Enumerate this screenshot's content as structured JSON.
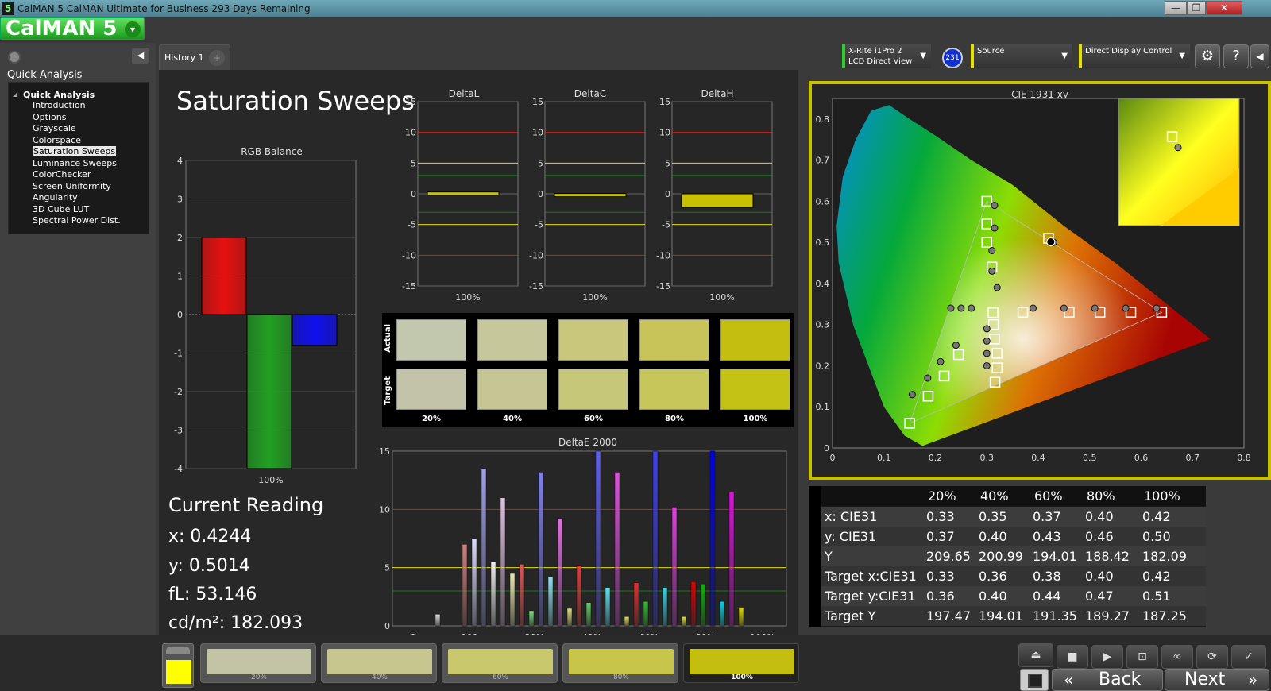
{
  "titlebar": {
    "text": "CalMAN 5 CalMAN Ultimate for Business 293 Days Remaining",
    "logo": "5",
    "minimize": "—",
    "maximize": "❐",
    "close": "✕"
  },
  "brand": {
    "name": "CalMAN 5"
  },
  "left": {
    "section_title": "Quick Analysis",
    "tree_root": "Quick Analysis",
    "items": [
      "Introduction",
      "Options",
      "Grayscale",
      "Colorspace",
      "Saturation Sweeps",
      "Luminance Sweeps",
      "ColorChecker",
      "Screen Uniformity",
      "Angularity",
      "3D Cube LUT",
      "Spectral Power Dist."
    ],
    "selected_index": 4
  },
  "history": {
    "tab_label": "History 1",
    "plus": "+"
  },
  "devices": {
    "meter": {
      "line1": "X-Rite i1Pro 2",
      "line2": "LCD Direct View",
      "badge": "231",
      "accent": "#2ecc2e"
    },
    "source": {
      "label": "Source",
      "accent": "#e8e000"
    },
    "display": {
      "label": "Direct Display Control",
      "accent": "#e8e000"
    }
  },
  "icons": {
    "settings": "gear-icon",
    "help": "help-icon",
    "collapse": "chevron-left-icon"
  },
  "page": {
    "title": "Saturation Sweeps"
  },
  "rgb_balance": {
    "title": "RGB Balance",
    "xlabel": "100%"
  },
  "deltas": [
    {
      "title": "DeltaL",
      "xlabel": "100%"
    },
    {
      "title": "DeltaC",
      "xlabel": "100%"
    },
    {
      "title": "DeltaH",
      "xlabel": "100%"
    }
  ],
  "swatches": {
    "row_actual": "Actual",
    "row_target": "Target",
    "labels": [
      "20%",
      "40%",
      "60%",
      "80%",
      "100%"
    ],
    "actual": [
      "#c2c8ad",
      "#c6c79a",
      "#c9c77c",
      "#c8c45a",
      "#c4be10"
    ],
    "target": [
      "#c3c3aa",
      "#c6c695",
      "#c7c77a",
      "#c6c65a",
      "#c4c214"
    ]
  },
  "deltae": {
    "title": "DeltaE 2000"
  },
  "current": {
    "heading": "Current Reading",
    "x": "x: 0.4244",
    "y": "y: 0.5014",
    "fl": "fL: 53.146",
    "cdm": "cd/m²: 182.093"
  },
  "cie": {
    "title": "CIE 1931 xy"
  },
  "table": {
    "headers": [
      "20%",
      "40%",
      "60%",
      "80%",
      "100%"
    ],
    "rows": [
      {
        "label": "x: CIE31",
        "values": [
          "0.33",
          "0.35",
          "0.37",
          "0.40",
          "0.42"
        ]
      },
      {
        "label": "y: CIE31",
        "values": [
          "0.37",
          "0.40",
          "0.43",
          "0.46",
          "0.50"
        ]
      },
      {
        "label": "Y",
        "values": [
          "209.65",
          "200.99",
          "194.01",
          "188.42",
          "182.09"
        ]
      },
      {
        "label": "Target x:CIE31",
        "values": [
          "0.33",
          "0.36",
          "0.38",
          "0.40",
          "0.42"
        ]
      },
      {
        "label": "Target y:CIE31",
        "values": [
          "0.36",
          "0.40",
          "0.44",
          "0.47",
          "0.51"
        ]
      },
      {
        "label": "Target Y",
        "values": [
          "197.47",
          "194.01",
          "191.35",
          "189.27",
          "187.25"
        ]
      }
    ]
  },
  "bottom": {
    "thumbs": [
      "20%",
      "40%",
      "60%",
      "80%",
      "100%"
    ],
    "thumb_colors": [
      "#c3c3a6",
      "#c6c68e",
      "#c9c86c",
      "#c8c64a",
      "#c4be10"
    ],
    "back": "Back",
    "next": "Next",
    "back_chev": "«",
    "next_chev": "»"
  },
  "chart_data": [
    {
      "type": "bar",
      "title": "RGB Balance",
      "categories": [
        "Red",
        "Green",
        "Blue"
      ],
      "values": [
        2.0,
        -4.0,
        -0.8
      ],
      "colors": [
        "#e81010",
        "#22a022",
        "#1010ee"
      ],
      "ylim": [
        -4,
        4
      ],
      "ticks": [
        4,
        3,
        2,
        1,
        0,
        -1,
        -2,
        -3,
        -4
      ],
      "xlabel": "100%"
    },
    {
      "type": "bar",
      "title": "DeltaL",
      "values": [
        0.3
      ],
      "ylim": [
        -15,
        15
      ],
      "ticks": [
        15,
        10,
        5,
        0,
        -5,
        -10,
        -15
      ],
      "xlabel": "100%"
    },
    {
      "type": "bar",
      "title": "DeltaC",
      "values": [
        0.05
      ],
      "ylim": [
        -15,
        15
      ],
      "ticks": [
        15,
        10,
        5,
        0,
        -5,
        -10,
        -15
      ],
      "xlabel": "100%"
    },
    {
      "type": "bar",
      "title": "DeltaH",
      "values": [
        -2.2
      ],
      "ylim": [
        -15,
        15
      ],
      "ticks": [
        15,
        10,
        5,
        0,
        -5,
        -10,
        -15
      ],
      "xlabel": "100%"
    },
    {
      "type": "bar",
      "title": "DeltaE 2000",
      "ylim": [
        0,
        15
      ],
      "ticks": [
        15,
        10,
        5,
        0
      ],
      "xticks": [
        "0",
        "100",
        "20%",
        "40%",
        "60%",
        "80%",
        "100%"
      ],
      "groups": [
        {
          "x": "0",
          "values": [
            1
          ]
        },
        {
          "x": "20%",
          "values": [
            7,
            7.5,
            13.5,
            5.5,
            11,
            4.5
          ]
        },
        {
          "x": "40%",
          "values": [
            5.3,
            1.3,
            13.2,
            4.2,
            9.2,
            1.5
          ]
        },
        {
          "x": "60%",
          "values": [
            5.2,
            2,
            15,
            3.3,
            13.2,
            0.8
          ]
        },
        {
          "x": "80%",
          "values": [
            3.7,
            2.1,
            15,
            3.3,
            10.2,
            0.8
          ]
        },
        {
          "x": "100%",
          "values": [
            3.8,
            3.6,
            15,
            2.1,
            11.5,
            1.6
          ]
        }
      ],
      "series_colors": [
        [
          "#e0e0e0",
          "#f4f4f4",
          "#dcdcdc",
          "#c8c8c8"
        ],
        [
          "#d08080",
          "#ddddff",
          "#a0a0e8",
          "#f0f0f0",
          "#e0c0e0",
          "#e8e8b0"
        ],
        [
          "#e05858",
          "#80e080",
          "#8080f0",
          "#90e0f0",
          "#e070e0",
          "#e0e080"
        ],
        [
          "#e04040",
          "#60d060",
          "#6060f0",
          "#60e0f0",
          "#e050e0",
          "#e0e060"
        ],
        [
          "#e03030",
          "#30c030",
          "#4040f0",
          "#40d0e0",
          "#e040e0",
          "#e0e040"
        ],
        [
          "#e00000",
          "#10b010",
          "#0000f0",
          "#10d0e0",
          "#e010e0",
          "#e0e000"
        ]
      ]
    },
    {
      "type": "scatter",
      "title": "CIE 1931 xy",
      "xlim": [
        0,
        0.8
      ],
      "ylim": [
        0,
        0.85
      ],
      "xticks": [
        0,
        0.1,
        0.2,
        0.3,
        0.4,
        0.5,
        0.6,
        0.7,
        0.8
      ],
      "yticks": [
        0,
        0.1,
        0.2,
        0.3,
        0.4,
        0.5,
        0.6,
        0.7,
        0.8
      ],
      "gamut": [
        [
          0.64,
          0.33
        ],
        [
          0.3,
          0.6
        ],
        [
          0.15,
          0.06
        ]
      ],
      "targets": [
        [
          0.15,
          0.06
        ],
        [
          0.186,
          0.126
        ],
        [
          0.217,
          0.175
        ],
        [
          0.245,
          0.227
        ],
        [
          0.3,
          0.6
        ],
        [
          0.3,
          0.545
        ],
        [
          0.3,
          0.5
        ],
        [
          0.31,
          0.44
        ],
        [
          0.312,
          0.329
        ],
        [
          0.42,
          0.51
        ],
        [
          0.64,
          0.33
        ],
        [
          0.58,
          0.33
        ],
        [
          0.52,
          0.33
        ],
        [
          0.46,
          0.33
        ],
        [
          0.37,
          0.33
        ],
        [
          0.316,
          0.16
        ],
        [
          0.32,
          0.195
        ],
        [
          0.32,
          0.23
        ],
        [
          0.315,
          0.265
        ],
        [
          0.313,
          0.3
        ]
      ],
      "measured": [
        [
          0.155,
          0.13
        ],
        [
          0.185,
          0.17
        ],
        [
          0.21,
          0.21
        ],
        [
          0.24,
          0.25
        ],
        [
          0.315,
          0.59
        ],
        [
          0.315,
          0.535
        ],
        [
          0.31,
          0.48
        ],
        [
          0.31,
          0.43
        ],
        [
          0.32,
          0.39
        ],
        [
          0.43,
          0.5
        ],
        [
          0.63,
          0.34
        ],
        [
          0.57,
          0.34
        ],
        [
          0.51,
          0.34
        ],
        [
          0.45,
          0.34
        ],
        [
          0.39,
          0.34
        ],
        [
          0.3,
          0.2
        ],
        [
          0.3,
          0.23
        ],
        [
          0.3,
          0.26
        ],
        [
          0.3,
          0.29
        ],
        [
          0.27,
          0.34
        ],
        [
          0.25,
          0.34
        ],
        [
          0.23,
          0.34
        ]
      ],
      "current": [
        0.4244,
        0.5014
      ],
      "inset_target": [
        0.42,
        0.51
      ],
      "inset_measured": [
        0.4244,
        0.5014
      ]
    }
  ]
}
